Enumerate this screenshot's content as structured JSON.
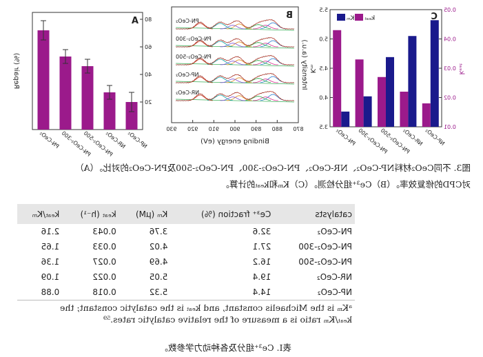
{
  "figure": {
    "panel_a": {
      "letter": "A",
      "ylabel": "Repair (%)",
      "yticks": [
        "20",
        "40",
        "60",
        "80"
      ],
      "categories": [
        "NP-CeO₂",
        "NR-CeO₂",
        "PN-CeO₂-500",
        "PN-CeO₂-300",
        "PN-CeO₂"
      ],
      "color": "#9b1a8b"
    },
    "panel_b": {
      "letter": "B",
      "ylabel": "Intensity (a.u.)",
      "xlabel": "Binding energy (eV)",
      "xticks": [
        "870",
        "880",
        "890",
        "900",
        "910",
        "920",
        "930"
      ],
      "traces": [
        "PN-CeO₂",
        "PN-CeO₂-300",
        "PN-CeO₂-500",
        "NP-CeO₂",
        "NR-CeO₂"
      ]
    },
    "panel_c": {
      "letter": "C",
      "left_axis_label": "kₑₐₜ",
      "right_axis_label": "Kₘ",
      "legend_kcat": "kₑₐₜ",
      "legend_km": "Kₘ",
      "kcat_ticks": [
        "0.01",
        "0.02",
        "0.03",
        "0.04",
        "0.05"
      ],
      "km_ticks": [
        "3.5",
        "4.0",
        "4.5",
        "5.0",
        "5.5"
      ],
      "categories": [
        "NP-CeO₂",
        "NR-CeO₂",
        "PN-CeO₂-500",
        "PN-CeO₂-300",
        "PN-CeO₂"
      ],
      "kcat_color": "#9b1a8b",
      "km_color": "#1a1a8c"
    }
  },
  "chart_data": [
    {
      "type": "bar",
      "title": "",
      "ylabel": "Repair (%)",
      "ylim": [
        0,
        85
      ],
      "categories": [
        "NP-CeO₂",
        "NR-CeO₂",
        "PN-CeO₂-500",
        "PN-CeO₂-300",
        "PN-CeO₂"
      ],
      "values": [
        20,
        27,
        46,
        53,
        72
      ],
      "errors": [
        7,
        5,
        5,
        5,
        7
      ]
    },
    {
      "type": "bar",
      "title": "",
      "categories": [
        "NP-CeO₂",
        "NR-CeO₂",
        "PN-CeO₂-500",
        "PN-CeO₂-300",
        "PN-CeO₂"
      ],
      "series": [
        {
          "name": "kₑₐₜ",
          "axis": "left",
          "values": [
            0.018,
            0.022,
            0.027,
            0.033,
            0.043
          ]
        },
        {
          "name": "Kₘ",
          "axis": "right",
          "values": [
            5.32,
            5.05,
            4.69,
            4.02,
            3.76
          ]
        }
      ],
      "ylim_left": [
        0.01,
        0.05
      ],
      "ylim_right": [
        3.5,
        5.5
      ]
    }
  ],
  "caption": {
    "line1": "图3. 不同CeO₂材料NP-CeO₂、NR-CeO₂、PN-CeO₂-300、PN-CeO₂-500及PN-CeO₂的对比。（A）",
    "line2": "对CPD的修复效率。（B）Ce³⁺组分检测。（C）Kₘ和kₑₐₜ的计算。"
  },
  "table": {
    "headers": [
      "catalysts",
      "Ce³⁺ fraction (%)",
      "Kₘ (μM)",
      "kₑₐₜ (h⁻¹)",
      "kₑₐₜ/Kₘ"
    ],
    "rows": [
      [
        "PN-CeO₂",
        "32.6",
        "3.76",
        "0.043",
        "2.16"
      ],
      [
        "PN-CeO₂-300",
        "27.1",
        "4.02",
        "0.033",
        "1.65"
      ],
      [
        "PN-CeO₂-500",
        "16.2",
        "4.69",
        "0.027",
        "1.36"
      ],
      [
        "NR-CeO₂",
        "19.4",
        "5.05",
        "0.022",
        "1.09"
      ],
      [
        "NP-CeO₂",
        "14.4",
        "5.32",
        "0.018",
        "0.88"
      ]
    ]
  },
  "footnote": {
    "line1": "ᵃKₘ is the Michaelis constant, and kₑₐₜ is the catalytic constant; the",
    "line2": "kₑₐₜ/Kₘ ratio is a measure of the relative catalytic rates.⁵⁹"
  },
  "table_caption": "表I. Ce³⁺组分及各种动力学参数。"
}
